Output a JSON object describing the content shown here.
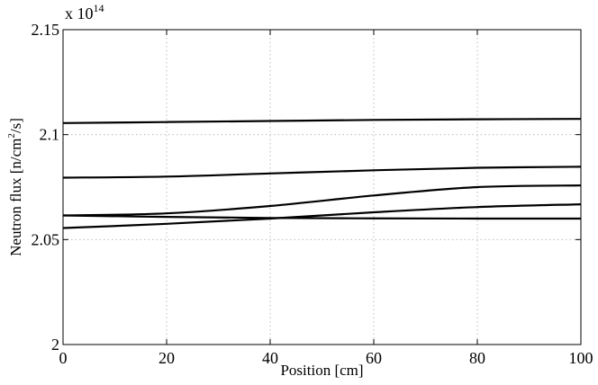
{
  "chart_data": {
    "type": "line",
    "xlabel": "Position [cm]",
    "ylabel": "Neutron flux [n/cm",
    "ylabel_sup": "2",
    "ylabel_tail": "/s]",
    "exponent_prefix": "x 10",
    "exponent_power": "14",
    "xlim": [
      0,
      100
    ],
    "ylim": [
      2.0,
      2.15
    ],
    "grid": true,
    "x_ticks": [
      0,
      20,
      40,
      60,
      80,
      100
    ],
    "x_tick_labels": [
      "0",
      "20",
      "40",
      "60",
      "80",
      "100"
    ],
    "y_ticks": [
      2.0,
      2.05,
      2.1,
      2.15
    ],
    "y_tick_labels": [
      "2",
      "2.05",
      "2.1",
      "2.15"
    ],
    "series": [
      {
        "x": [
          0,
          20,
          40,
          60,
          80,
          100
        ],
        "values": [
          2.1055,
          2.106,
          2.1065,
          2.107,
          2.1073,
          2.1075
        ]
      },
      {
        "x": [
          0,
          20,
          40,
          60,
          80,
          100
        ],
        "values": [
          2.0795,
          2.08,
          2.0815,
          2.083,
          2.0842,
          2.0847
        ]
      },
      {
        "x": [
          0,
          20,
          40,
          60,
          80,
          100
        ],
        "values": [
          2.0615,
          2.0625,
          2.066,
          2.071,
          2.075,
          2.0758
        ]
      },
      {
        "x": [
          0,
          20,
          40,
          60,
          80,
          100
        ],
        "values": [
          2.0555,
          2.0575,
          2.06,
          2.063,
          2.0655,
          2.0668
        ]
      },
      {
        "x": [
          0,
          20,
          40,
          60,
          80,
          100
        ],
        "values": [
          2.0615,
          2.0608,
          2.0603,
          2.0601,
          2.06,
          2.06
        ]
      }
    ]
  }
}
